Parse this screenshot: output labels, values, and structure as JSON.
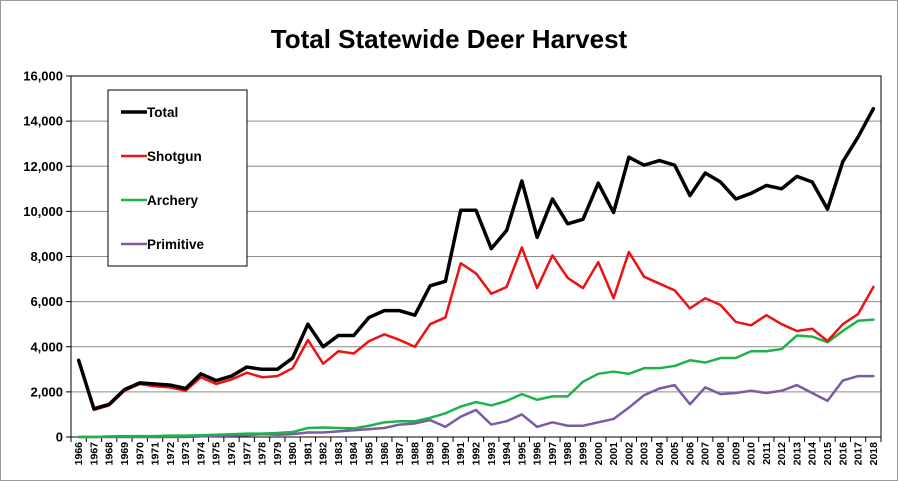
{
  "chart_data": {
    "type": "line",
    "title": "Total Statewide Deer Harvest",
    "xlabel": "",
    "ylabel": "",
    "ylim": [
      0,
      16000
    ],
    "yticks": [
      "0",
      "2,000",
      "4,000",
      "6,000",
      "8,000",
      "10,000",
      "12,000",
      "14,000",
      "16,000"
    ],
    "grid": true,
    "legend_position": "top-left",
    "x": [
      "1966",
      "1967",
      "1968",
      "1969",
      "1970",
      "1971",
      "1972",
      "1973",
      "1974",
      "1975",
      "1976",
      "1977",
      "1978",
      "1979",
      "1980",
      "1981",
      "1982",
      "1983",
      "1984",
      "1985",
      "1986",
      "1987",
      "1988",
      "1989",
      "1990",
      "1991",
      "1992",
      "1993",
      "1994",
      "1995",
      "1996",
      "1997",
      "1998",
      "1999",
      "2000",
      "2001",
      "2002",
      "2003",
      "2004",
      "2005",
      "2006",
      "2007",
      "2008",
      "2009",
      "2010",
      "2011",
      "2012",
      "2013",
      "2014",
      "2015",
      "2016",
      "2017",
      "2018"
    ],
    "series": [
      {
        "name": "Total",
        "color": "#000000",
        "values": [
          3400,
          1250,
          1450,
          2100,
          2400,
          2350,
          2300,
          2150,
          2800,
          2500,
          2700,
          3100,
          3000,
          3000,
          3500,
          5000,
          4000,
          4500,
          4500,
          5300,
          5600,
          5600,
          5400,
          6700,
          6900,
          10050,
          10050,
          8350,
          9150,
          11350,
          8850,
          10550,
          9450,
          9650,
          11250,
          9950,
          12400,
          12050,
          12250,
          12050,
          10700,
          11700,
          11300,
          10550,
          10800,
          11150,
          11000,
          11550,
          11300,
          10100,
          12200,
          13300,
          14550
        ]
      },
      {
        "name": "Shotgun",
        "color": "#ee1111",
        "values": [
          3400,
          1200,
          1400,
          2050,
          2350,
          2250,
          2200,
          2050,
          2650,
          2350,
          2550,
          2850,
          2650,
          2700,
          3050,
          4300,
          3250,
          3800,
          3700,
          4250,
          4550,
          4300,
          4000,
          5000,
          5300,
          7700,
          7250,
          6350,
          6650,
          8400,
          6600,
          8050,
          7050,
          6600,
          7750,
          6150,
          8200,
          7100,
          6800,
          6500,
          5700,
          6150,
          5850,
          5100,
          4950,
          5400,
          5000,
          4700,
          4800,
          4250,
          5000,
          5450,
          6650
        ]
      },
      {
        "name": "Archery",
        "color": "#1db34a",
        "values": [
          0,
          0,
          30,
          40,
          40,
          40,
          60,
          60,
          80,
          100,
          120,
          150,
          150,
          180,
          220,
          400,
          420,
          400,
          380,
          500,
          650,
          700,
          700,
          850,
          1050,
          1350,
          1550,
          1400,
          1600,
          1900,
          1650,
          1800,
          1800,
          2450,
          2800,
          2900,
          2800,
          3050,
          3050,
          3150,
          3400,
          3300,
          3500,
          3500,
          3800,
          3800,
          3900,
          4500,
          4450,
          4200,
          4700,
          5150,
          5200
        ]
      },
      {
        "name": "Primitive",
        "color": "#7b5aa6",
        "values": [
          0,
          0,
          0,
          0,
          0,
          0,
          0,
          0,
          30,
          50,
          60,
          80,
          130,
          100,
          130,
          200,
          200,
          250,
          300,
          350,
          400,
          550,
          600,
          750,
          450,
          900,
          1200,
          550,
          700,
          1000,
          450,
          650,
          500,
          500,
          650,
          800,
          1300,
          1850,
          2150,
          2300,
          1450,
          2200,
          1900,
          1950,
          2050,
          1950,
          2050,
          2300,
          1950,
          1600,
          2500,
          2700,
          2700
        ]
      }
    ]
  }
}
